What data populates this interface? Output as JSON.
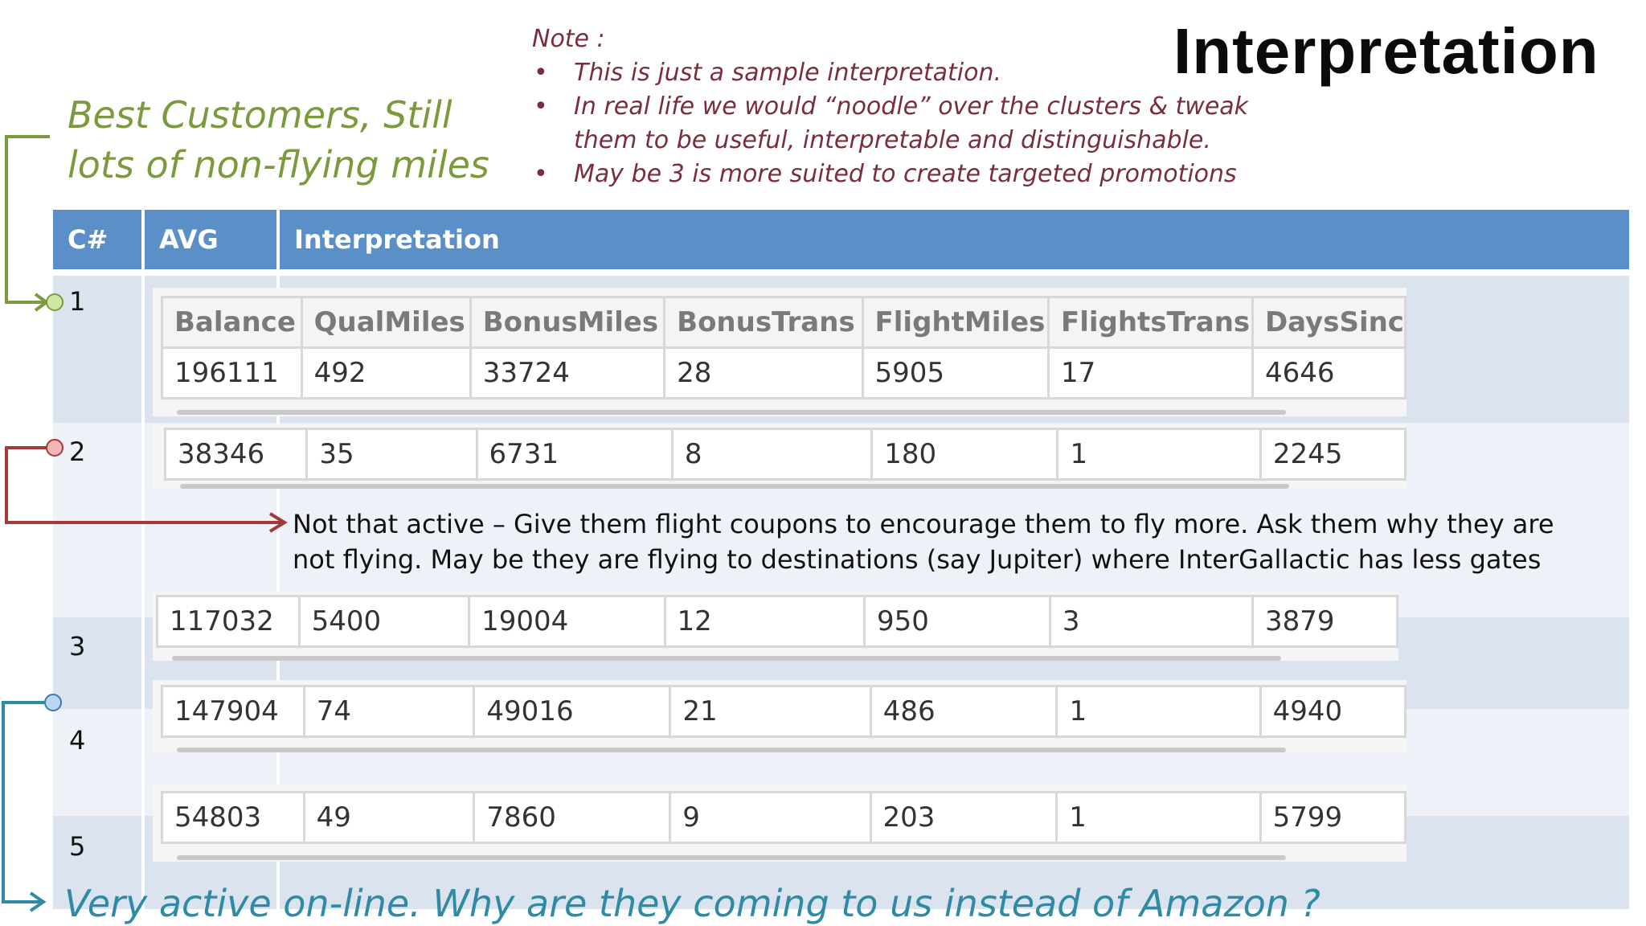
{
  "title": "Interpretation",
  "note": {
    "heading": "Note :",
    "items": [
      "This is just a sample interpretation.",
      "In real life we would “noodle” over the clusters & tweak them to be useful, interpretable and distinguishable.",
      "May be 3 is more suited to create targeted promotions"
    ]
  },
  "callouts": {
    "best_customers": "Best Customers, Still lots of non-flying miles",
    "not_active": "Not that active – Give them flight coupons to encourage them to fly more. Ask them why they are not flying. May be they are flying to destinations (say Jupiter) where InterGallactic has less gates",
    "very_active": "Very active on-line. Why are they coming to us instead of Amazon ?"
  },
  "table": {
    "headers": [
      "C#",
      "AVG",
      "Interpretation"
    ],
    "rows": [
      "1",
      "2",
      "3",
      "4",
      "5"
    ]
  },
  "stats": {
    "columns": [
      "Balance",
      "QualMiles",
      "BonusMiles",
      "BonusTrans",
      "FlightMiles",
      "FlightsTrans",
      "DaysSinc"
    ],
    "clusters": [
      [
        "196111",
        "492",
        "33724",
        "28",
        "5905",
        "17",
        "4646"
      ],
      [
        "38346",
        "35",
        "6731",
        "8",
        "180",
        "1",
        "2245"
      ],
      [
        "117032",
        "5400",
        "19004",
        "12",
        "950",
        "3",
        "3879"
      ],
      [
        "147904",
        "74",
        "49016",
        "21",
        "486",
        "1",
        "4940"
      ],
      [
        "54803",
        "49",
        "7860",
        "9",
        "203",
        "1",
        "5799"
      ]
    ]
  },
  "colors": {
    "header": "#5b8fc8",
    "green": "#7b9a3e",
    "red": "#a23a3a",
    "blue": "#2f8aa4",
    "note": "#7a2e3c"
  }
}
